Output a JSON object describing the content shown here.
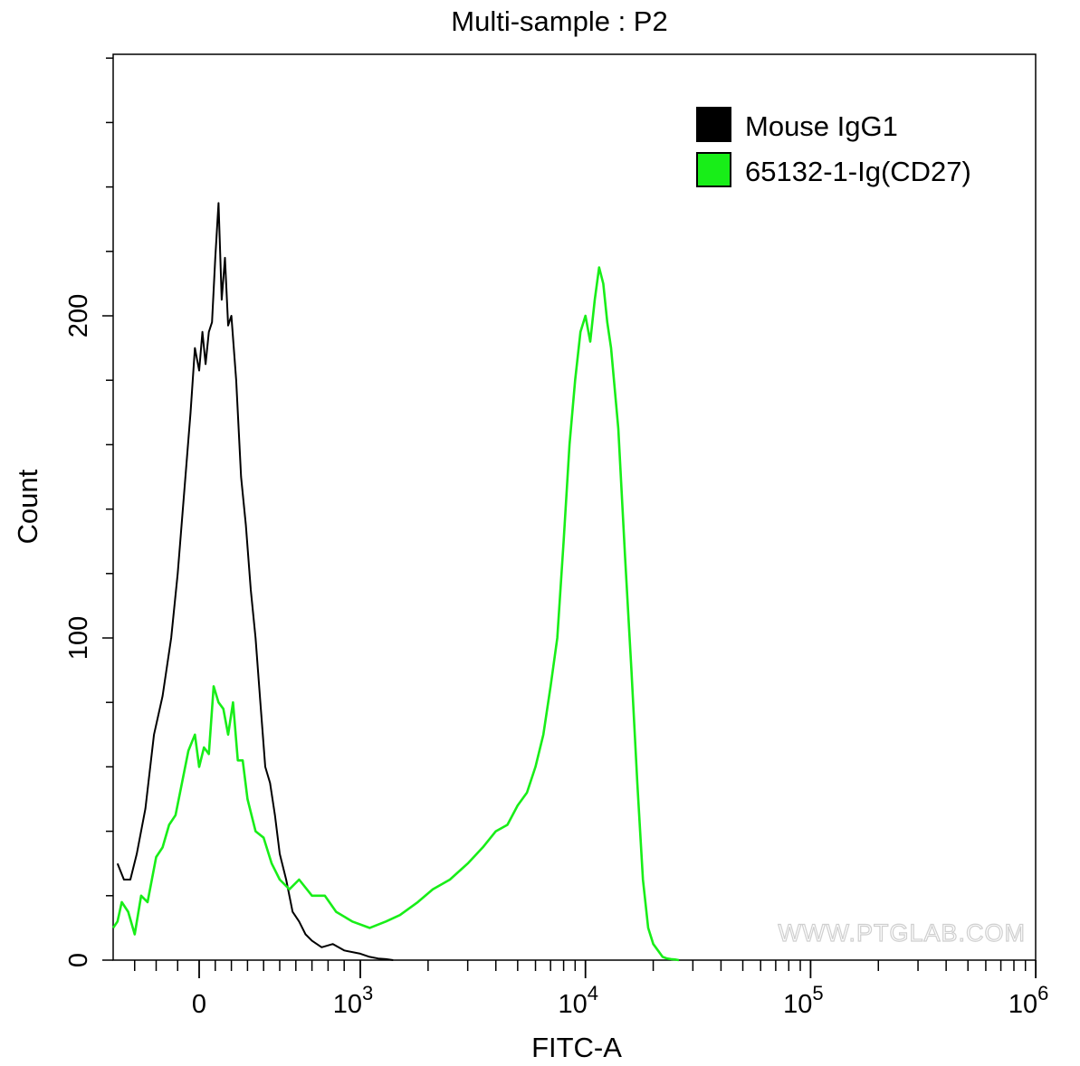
{
  "chart_data": {
    "type": "line",
    "title": "Multi-sample : P2",
    "xlabel": "FITC-A",
    "ylabel": "Count",
    "x_scale": "biexponential",
    "xlim": [
      -400,
      1000000
    ],
    "ylim": [
      0,
      285
    ],
    "y_ticks": [
      {
        "value": 0,
        "label": "0"
      },
      {
        "value": 100,
        "label": "100"
      },
      {
        "value": 200,
        "label": "200"
      }
    ],
    "x_ticks": [
      {
        "value": 0,
        "base": "0",
        "exp": ""
      },
      {
        "value": 1000,
        "base": "10",
        "exp": "3"
      },
      {
        "value": 10000,
        "base": "10",
        "exp": "4"
      },
      {
        "value": 100000,
        "base": "10",
        "exp": "5"
      },
      {
        "value": 1000000,
        "base": "10",
        "exp": "6"
      }
    ],
    "legend_position": "top-right",
    "watermark": "WWW.PTGLAB.COM",
    "series": [
      {
        "name": "Mouse IgG1",
        "color": "#000000",
        "x": [
          -380,
          -350,
          -320,
          -290,
          -250,
          -210,
          -170,
          -130,
          -100,
          -70,
          -40,
          -20,
          0,
          20,
          40,
          60,
          80,
          100,
          120,
          140,
          160,
          180,
          200,
          230,
          260,
          290,
          320,
          350,
          380,
          410,
          440,
          470,
          500,
          540,
          580,
          620,
          660,
          700,
          760,
          830,
          900,
          1000,
          1100,
          1200,
          1300,
          1400
        ],
        "y": [
          30,
          25,
          25,
          33,
          47,
          70,
          82,
          100,
          120,
          145,
          170,
          190,
          183,
          195,
          185,
          195,
          198,
          218,
          235,
          205,
          218,
          197,
          200,
          180,
          150,
          135,
          115,
          100,
          80,
          60,
          55,
          45,
          33,
          25,
          15,
          12,
          8,
          6,
          4,
          5,
          3,
          2,
          1,
          0.5,
          0.3,
          0
        ]
      },
      {
        "name": "65132-1-Ig(CD27)",
        "color": "#18ee18",
        "x": [
          -400,
          -380,
          -360,
          -330,
          -300,
          -270,
          -240,
          -200,
          -170,
          -140,
          -110,
          -80,
          -50,
          -20,
          0,
          30,
          60,
          90,
          120,
          150,
          180,
          210,
          240,
          270,
          300,
          350,
          400,
          450,
          500,
          560,
          620,
          700,
          780,
          850,
          950,
          1100,
          1300,
          1500,
          1800,
          2100,
          2500,
          3000,
          3500,
          4000,
          4500,
          5000,
          5500,
          6000,
          6500,
          7000,
          7500,
          8000,
          8500,
          9000,
          9500,
          10000,
          10500,
          11000,
          11500,
          12000,
          12500,
          13000,
          14000,
          15000,
          16000,
          17000,
          18000,
          19000,
          20000,
          21000,
          22000,
          23000,
          24000,
          25000,
          26000
        ],
        "y": [
          10,
          12,
          18,
          15,
          8,
          20,
          18,
          32,
          35,
          42,
          45,
          55,
          65,
          70,
          60,
          66,
          64,
          85,
          80,
          78,
          70,
          80,
          62,
          62,
          50,
          40,
          38,
          30,
          25,
          22,
          25,
          20,
          20,
          15,
          12,
          10,
          12,
          14,
          18,
          22,
          25,
          30,
          35,
          40,
          42,
          48,
          52,
          60,
          70,
          85,
          100,
          130,
          160,
          180,
          195,
          200,
          192,
          205,
          215,
          210,
          198,
          190,
          165,
          125,
          90,
          55,
          25,
          10,
          5,
          3,
          1,
          0.5,
          0.3,
          0.2,
          0
        ]
      }
    ]
  }
}
